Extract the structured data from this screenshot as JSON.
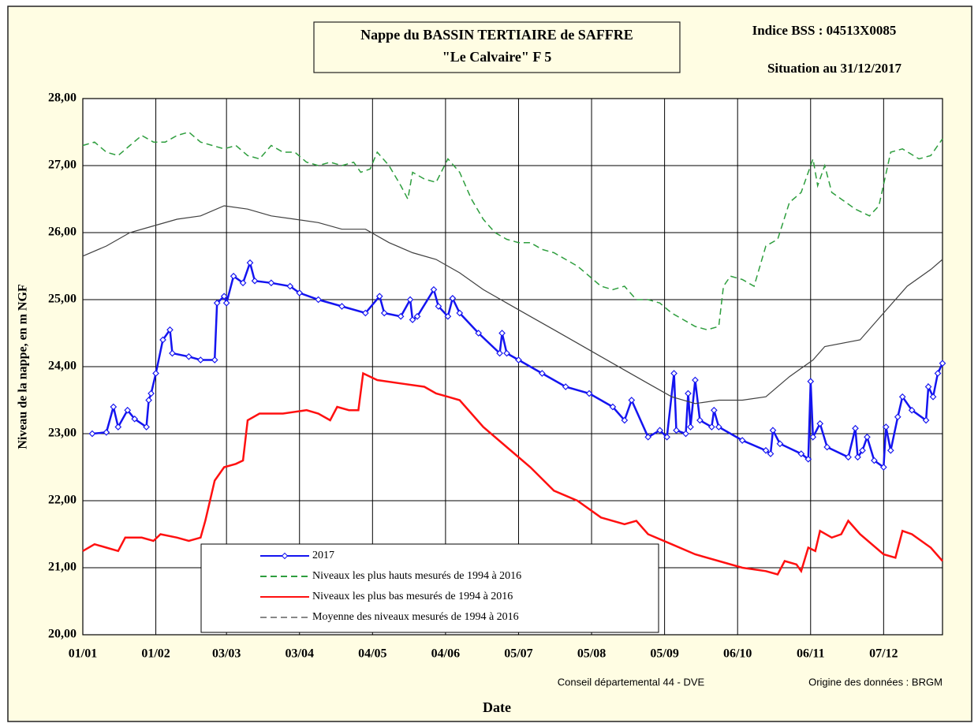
{
  "chart_data": {
    "type": "line",
    "title": [
      "Nappe du BASSIN TERTIAIRE de SAFFRE",
      "\"Le Calvaire\" F 5"
    ],
    "annotations": [
      "Indice BSS : 04513X0085",
      "Situation au 31/12/2017",
      "Conseil départemental 44 - DVE",
      "Origine des données : BRGM"
    ],
    "y_label": "Niveau de la nappe, en m NGF",
    "x_label": "Date",
    "xlim": [
      0,
      365
    ],
    "xticks": [
      {
        "value": 0,
        "label": "01/01"
      },
      {
        "value": 31,
        "label": "01/02"
      },
      {
        "value": 61,
        "label": "03/03"
      },
      {
        "value": 92,
        "label": "03/04"
      },
      {
        "value": 123,
        "label": "04/05"
      },
      {
        "value": 154,
        "label": "04/06"
      },
      {
        "value": 185,
        "label": "05/07"
      },
      {
        "value": 216,
        "label": "05/08"
      },
      {
        "value": 247,
        "label": "05/09"
      },
      {
        "value": 278,
        "label": "06/10"
      },
      {
        "value": 309,
        "label": "06/11"
      },
      {
        "value": 340,
        "label": "07/12"
      }
    ],
    "ylim": [
      20,
      28
    ],
    "yticks": [
      {
        "value": 20,
        "label": "20,00"
      },
      {
        "value": 21,
        "label": "21,00"
      },
      {
        "value": 22,
        "label": "22,00"
      },
      {
        "value": 23,
        "label": "23,00"
      },
      {
        "value": 24,
        "label": "24,00"
      },
      {
        "value": 25,
        "label": "25,00"
      },
      {
        "value": 26,
        "label": "26,00"
      },
      {
        "value": 27,
        "label": "27,00"
      },
      {
        "value": 28,
        "label": "28,00"
      }
    ],
    "grid": true,
    "series": [
      {
        "name": "2017",
        "color": "#1414f0",
        "style": "markers",
        "x": [
          4,
          10,
          13,
          15,
          19,
          22,
          27,
          28,
          29,
          31,
          34,
          37,
          38,
          45,
          50,
          56,
          57,
          60,
          61,
          64,
          68,
          71,
          73,
          80,
          88,
          92,
          100,
          110,
          120,
          126,
          128,
          135,
          139,
          140,
          142,
          149,
          151,
          155,
          157,
          160,
          168,
          177,
          178,
          180,
          185,
          195,
          205,
          215,
          225,
          230,
          233,
          240,
          245,
          248,
          251,
          252,
          256,
          257,
          258,
          260,
          262,
          267,
          268,
          270,
          280,
          290,
          292,
          293,
          296,
          305,
          308,
          309,
          310,
          313,
          316,
          325,
          328,
          329,
          331,
          333,
          336,
          340,
          341,
          343,
          346,
          348,
          352,
          358,
          359,
          361,
          363,
          365
        ],
        "values": [
          23.0,
          23.02,
          23.4,
          23.1,
          23.35,
          23.22,
          23.1,
          23.5,
          23.6,
          23.9,
          24.4,
          24.55,
          24.2,
          24.15,
          24.1,
          24.1,
          24.95,
          25.05,
          24.95,
          25.35,
          25.25,
          25.55,
          25.28,
          25.25,
          25.2,
          25.1,
          25.0,
          24.9,
          24.8,
          25.05,
          24.8,
          24.75,
          25.0,
          24.7,
          24.75,
          25.15,
          24.9,
          24.75,
          25.02,
          24.8,
          24.5,
          24.2,
          24.5,
          24.2,
          24.1,
          23.9,
          23.7,
          23.6,
          23.4,
          23.2,
          23.5,
          22.95,
          23.05,
          22.95,
          23.9,
          23.05,
          23.0,
          23.6,
          23.1,
          23.8,
          23.2,
          23.1,
          23.35,
          23.1,
          22.9,
          22.75,
          22.7,
          23.05,
          22.85,
          22.7,
          22.62,
          23.78,
          22.95,
          23.15,
          22.8,
          22.65,
          23.08,
          22.65,
          22.75,
          22.95,
          22.6,
          22.5,
          23.1,
          22.75,
          23.25,
          23.55,
          23.35,
          23.2,
          23.7,
          23.55,
          23.9,
          24.05
        ]
      },
      {
        "name": "Niveaux les plus hauts mesurés de 1994 à 2016",
        "color": "#2e9e3e",
        "style": "dashed",
        "x": [
          0,
          5,
          10,
          15,
          20,
          25,
          30,
          35,
          40,
          45,
          50,
          55,
          60,
          65,
          70,
          75,
          80,
          85,
          90,
          95,
          100,
          105,
          110,
          115,
          118,
          122,
          125,
          130,
          135,
          138,
          140,
          145,
          150,
          155,
          160,
          165,
          170,
          175,
          180,
          185,
          190,
          195,
          200,
          205,
          210,
          215,
          220,
          225,
          230,
          235,
          240,
          245,
          250,
          255,
          260,
          265,
          270,
          272,
          275,
          280,
          285,
          290,
          295,
          300,
          305,
          310,
          312,
          315,
          318,
          322,
          328,
          334,
          338,
          343,
          348,
          355,
          360,
          365
        ],
        "values": [
          27.3,
          27.35,
          27.2,
          27.15,
          27.3,
          27.45,
          27.35,
          27.35,
          27.45,
          27.5,
          27.35,
          27.3,
          27.25,
          27.3,
          27.15,
          27.1,
          27.3,
          27.2,
          27.2,
          27.05,
          27.0,
          27.05,
          27.0,
          27.05,
          26.9,
          26.95,
          27.2,
          27.0,
          26.7,
          26.5,
          26.9,
          26.8,
          26.75,
          27.1,
          26.9,
          26.5,
          26.2,
          26.0,
          25.9,
          25.85,
          25.85,
          25.75,
          25.7,
          25.6,
          25.5,
          25.35,
          25.2,
          25.15,
          25.2,
          25.0,
          25.0,
          24.95,
          24.8,
          24.7,
          24.6,
          24.55,
          24.6,
          25.2,
          25.35,
          25.3,
          25.2,
          25.8,
          25.9,
          26.45,
          26.6,
          27.1,
          26.7,
          27.0,
          26.6,
          26.5,
          26.35,
          26.25,
          26.4,
          27.2,
          27.25,
          27.1,
          27.15,
          27.4
        ]
      },
      {
        "name": "Niveaux les plus bas mesurés de 1994 à 2016",
        "color": "#ff1010",
        "style": "solid",
        "x": [
          0,
          5,
          10,
          15,
          18,
          25,
          30,
          33,
          40,
          45,
          50,
          52,
          56,
          60,
          65,
          68,
          70,
          75,
          85,
          95,
          100,
          105,
          108,
          113,
          117,
          119,
          125,
          135,
          145,
          150,
          155,
          160,
          170,
          180,
          190,
          200,
          210,
          220,
          230,
          235,
          240,
          250,
          260,
          270,
          280,
          290,
          295,
          298,
          303,
          305,
          308,
          311,
          313,
          318,
          322,
          325,
          330,
          340,
          345,
          348,
          352,
          360,
          365
        ],
        "values": [
          21.25,
          21.35,
          21.3,
          21.25,
          21.45,
          21.45,
          21.4,
          21.5,
          21.45,
          21.4,
          21.45,
          21.7,
          22.3,
          22.5,
          22.55,
          22.6,
          23.2,
          23.3,
          23.3,
          23.35,
          23.3,
          23.2,
          23.4,
          23.35,
          23.35,
          23.9,
          23.8,
          23.75,
          23.7,
          23.6,
          23.55,
          23.5,
          23.1,
          22.8,
          22.5,
          22.15,
          22.0,
          21.75,
          21.65,
          21.7,
          21.5,
          21.35,
          21.2,
          21.1,
          21.0,
          20.95,
          20.9,
          21.1,
          21.05,
          20.95,
          21.3,
          21.25,
          21.55,
          21.45,
          21.5,
          21.7,
          21.5,
          21.2,
          21.15,
          21.55,
          21.5,
          21.3,
          21.1
        ]
      },
      {
        "name": "Moyenne des niveaux mesurés de 1994 à 2016",
        "color": "#404040",
        "style": "thin",
        "x": [
          0,
          10,
          20,
          30,
          40,
          50,
          60,
          70,
          80,
          90,
          100,
          110,
          120,
          130,
          140,
          150,
          160,
          170,
          180,
          190,
          200,
          210,
          220,
          230,
          240,
          250,
          260,
          270,
          280,
          290,
          300,
          310,
          315,
          330,
          340,
          350,
          360,
          365
        ],
        "values": [
          25.65,
          25.8,
          26.0,
          26.1,
          26.2,
          26.25,
          26.4,
          26.35,
          26.25,
          26.2,
          26.15,
          26.05,
          26.05,
          25.85,
          25.7,
          25.6,
          25.4,
          25.15,
          24.95,
          24.75,
          24.55,
          24.35,
          24.15,
          23.95,
          23.75,
          23.55,
          23.45,
          23.5,
          23.5,
          23.55,
          23.85,
          24.1,
          24.3,
          24.4,
          24.8,
          25.2,
          25.45,
          25.6
        ]
      }
    ]
  }
}
